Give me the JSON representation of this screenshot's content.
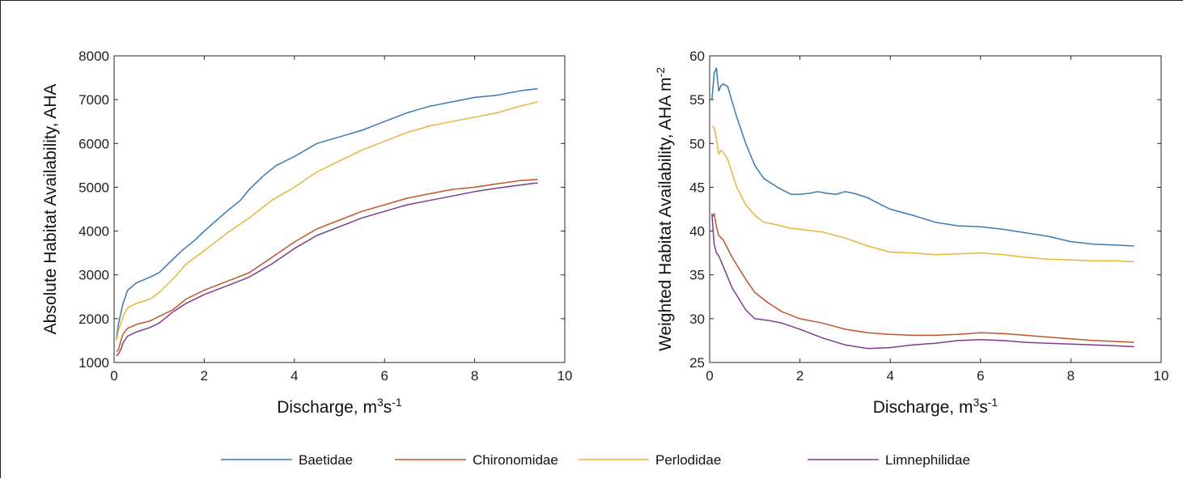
{
  "chart_data": [
    {
      "type": "line",
      "xlabel_text": "Discharge, m",
      "xlabel_sup": "3",
      "xlabel_mid": "s",
      "xlabel_sup2": "-1",
      "ylabel_text": "Absolute Habitat Availability, AHA",
      "xlim": [
        0,
        10
      ],
      "ylim": [
        1000,
        8000
      ],
      "xticks": [
        0,
        2,
        4,
        6,
        8,
        10
      ],
      "yticks": [
        1000,
        2000,
        3000,
        4000,
        5000,
        6000,
        7000,
        8000
      ],
      "series": [
        {
          "name": "Baetidae",
          "color": "#3a78b5",
          "x": [
            0.05,
            0.1,
            0.2,
            0.3,
            0.5,
            0.8,
            1.0,
            1.2,
            1.5,
            1.8,
            2.0,
            2.5,
            2.8,
            3.0,
            3.3,
            3.6,
            4.0,
            4.5,
            5.0,
            5.5,
            6.0,
            6.5,
            7.0,
            7.5,
            8.0,
            8.5,
            9.0,
            9.4
          ],
          "y": [
            1550,
            1900,
            2350,
            2650,
            2820,
            2950,
            3050,
            3250,
            3550,
            3800,
            4000,
            4450,
            4700,
            4950,
            5250,
            5500,
            5700,
            6000,
            6150,
            6300,
            6500,
            6700,
            6850,
            6950,
            7050,
            7100,
            7200,
            7250
          ]
        },
        {
          "name": "Chironomidae",
          "color": "#c2552a",
          "x": [
            0.05,
            0.1,
            0.15,
            0.2,
            0.3,
            0.5,
            0.8,
            1.0,
            1.3,
            1.6,
            2.0,
            2.5,
            3.0,
            3.5,
            4.0,
            4.5,
            5.0,
            5.5,
            6.0,
            6.5,
            7.0,
            7.5,
            8.0,
            8.5,
            9.0,
            9.4
          ],
          "y": [
            1250,
            1300,
            1500,
            1650,
            1780,
            1870,
            1950,
            2050,
            2200,
            2450,
            2650,
            2850,
            3050,
            3400,
            3750,
            4050,
            4250,
            4450,
            4600,
            4750,
            4850,
            4950,
            5000,
            5080,
            5150,
            5180
          ]
        },
        {
          "name": "Perlodidae",
          "color": "#e5b53c",
          "x": [
            0.05,
            0.1,
            0.2,
            0.3,
            0.5,
            0.8,
            1.0,
            1.3,
            1.6,
            2.0,
            2.5,
            3.0,
            3.5,
            4.0,
            4.5,
            5.0,
            5.5,
            6.0,
            6.5,
            7.0,
            7.5,
            8.0,
            8.5,
            9.0,
            9.4
          ],
          "y": [
            1500,
            1750,
            2050,
            2250,
            2350,
            2450,
            2600,
            2900,
            3250,
            3550,
            3950,
            4300,
            4700,
            5000,
            5350,
            5600,
            5850,
            6050,
            6250,
            6400,
            6500,
            6600,
            6700,
            6850,
            6950
          ]
        },
        {
          "name": "Limnephilidae",
          "color": "#7e3a8f",
          "x": [
            0.05,
            0.1,
            0.15,
            0.2,
            0.3,
            0.5,
            0.8,
            1.0,
            1.3,
            1.6,
            2.0,
            2.5,
            3.0,
            3.5,
            4.0,
            4.5,
            5.0,
            5.5,
            6.0,
            6.5,
            7.0,
            7.5,
            8.0,
            8.5,
            9.0,
            9.4
          ],
          "y": [
            1150,
            1200,
            1300,
            1450,
            1600,
            1700,
            1800,
            1900,
            2150,
            2350,
            2550,
            2750,
            2950,
            3250,
            3600,
            3900,
            4100,
            4300,
            4450,
            4600,
            4700,
            4800,
            4900,
            4980,
            5050,
            5100
          ]
        }
      ]
    },
    {
      "type": "line",
      "xlabel_text": "Discharge, m",
      "xlabel_sup": "3",
      "xlabel_mid": "s",
      "xlabel_sup2": "-1",
      "ylabel_text": "Weighted Habitat Availability, AHA m",
      "ylabel_sup": "-2",
      "xlim": [
        0,
        10
      ],
      "ylim": [
        25,
        60
      ],
      "xticks": [
        0,
        2,
        4,
        6,
        8,
        10
      ],
      "yticks": [
        25,
        30,
        35,
        40,
        45,
        50,
        55,
        60
      ],
      "series": [
        {
          "name": "Baetidae",
          "color": "#3a78b5",
          "x": [
            0.05,
            0.1,
            0.15,
            0.2,
            0.25,
            0.3,
            0.4,
            0.6,
            0.8,
            1.0,
            1.2,
            1.5,
            1.8,
            2.0,
            2.2,
            2.4,
            2.6,
            2.8,
            3.0,
            3.2,
            3.5,
            3.8,
            4.0,
            4.5,
            5.0,
            5.5,
            6.0,
            6.5,
            7.0,
            7.5,
            8.0,
            8.5,
            9.0,
            9.4
          ],
          "y": [
            55,
            58,
            58.6,
            56,
            56.6,
            56.8,
            56.5,
            53,
            50,
            47.5,
            46,
            45,
            44.2,
            44.2,
            44.3,
            44.5,
            44.3,
            44.2,
            44.5,
            44.3,
            43.8,
            43,
            42.5,
            41.8,
            41,
            40.6,
            40.5,
            40.2,
            39.8,
            39.4,
            38.8,
            38.5,
            38.4,
            38.3
          ]
        },
        {
          "name": "Chironomidae",
          "color": "#c2552a",
          "x": [
            0.05,
            0.1,
            0.15,
            0.2,
            0.3,
            0.5,
            0.8,
            1.0,
            1.3,
            1.6,
            2.0,
            2.5,
            3.0,
            3.5,
            4.0,
            4.5,
            5.0,
            5.5,
            6.0,
            6.5,
            7.0,
            7.5,
            8.0,
            8.5,
            9.0,
            9.4
          ],
          "y": [
            41.5,
            42,
            40.5,
            39.5,
            39,
            37,
            34.5,
            33,
            31.8,
            30.8,
            30,
            29.5,
            28.8,
            28.4,
            28.2,
            28.1,
            28.1,
            28.2,
            28.4,
            28.3,
            28.1,
            27.9,
            27.7,
            27.5,
            27.4,
            27.3
          ]
        },
        {
          "name": "Perlodidae",
          "color": "#e5b53c",
          "x": [
            0.05,
            0.1,
            0.15,
            0.2,
            0.25,
            0.3,
            0.4,
            0.6,
            0.8,
            1.0,
            1.2,
            1.5,
            1.8,
            2.0,
            2.5,
            3.0,
            3.5,
            4.0,
            4.5,
            5.0,
            5.5,
            6.0,
            6.5,
            7.0,
            7.5,
            8.0,
            8.5,
            9.0,
            9.4
          ],
          "y": [
            52,
            51.8,
            50.5,
            48.8,
            49.2,
            49,
            48.2,
            45,
            43,
            41.8,
            41,
            40.7,
            40.3,
            40.2,
            39.9,
            39.2,
            38.3,
            37.6,
            37.5,
            37.3,
            37.4,
            37.5,
            37.3,
            37,
            36.8,
            36.7,
            36.6,
            36.6,
            36.5
          ]
        },
        {
          "name": "Limnephilidae",
          "color": "#7e3a8f",
          "x": [
            0.05,
            0.1,
            0.15,
            0.2,
            0.3,
            0.5,
            0.8,
            1.0,
            1.3,
            1.6,
            2.0,
            2.5,
            3.0,
            3.5,
            4.0,
            4.5,
            5.0,
            5.5,
            6.0,
            6.5,
            7.0,
            7.5,
            8.0,
            8.5,
            9.0,
            9.4
          ],
          "y": [
            42,
            38.5,
            37.5,
            37.2,
            36,
            33.5,
            31,
            30,
            29.8,
            29.5,
            28.8,
            27.8,
            27,
            26.6,
            26.7,
            27,
            27.2,
            27.5,
            27.6,
            27.5,
            27.3,
            27.2,
            27.1,
            27,
            26.9,
            26.8
          ]
        }
      ]
    }
  ],
  "legend": {
    "placement": "bottom-center",
    "items": [
      {
        "name": "Baetidae",
        "color": "#3a78b5"
      },
      {
        "name": "Chironomidae",
        "color": "#c2552a"
      },
      {
        "name": "Perlodidae",
        "color": "#e5b53c"
      },
      {
        "name": "Limnephilidae",
        "color": "#7e3a8f"
      }
    ]
  }
}
